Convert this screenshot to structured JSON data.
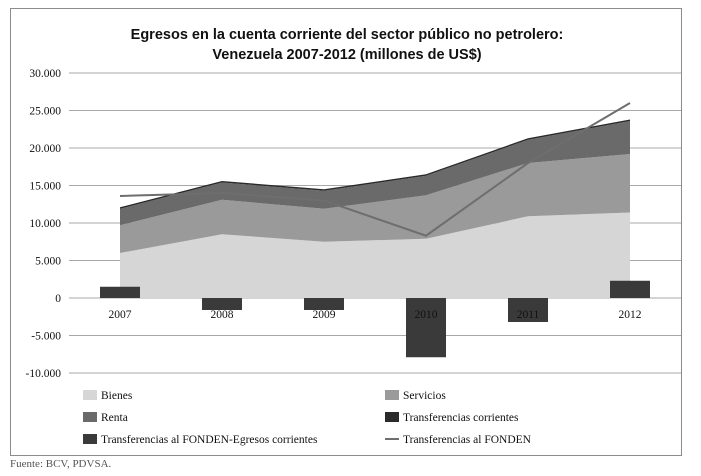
{
  "chart_data": {
    "type": "area",
    "title_line1": "Egresos en la cuenta corriente del sector público no petrolero:",
    "title_line2": "Venezuela 2007-2012 (millones de US$)",
    "categories": [
      "2007",
      "2008",
      "2009",
      "2010",
      "2011",
      "2012"
    ],
    "ylim": [
      -10000,
      30000
    ],
    "yticks": [
      {
        "value": 30000,
        "label": "30.000"
      },
      {
        "value": 25000,
        "label": "25.000"
      },
      {
        "value": 20000,
        "label": "20.000"
      },
      {
        "value": 15000,
        "label": "15.000"
      },
      {
        "value": 10000,
        "label": "10.000"
      },
      {
        "value": 5000,
        "label": "5.000"
      },
      {
        "value": 0,
        "label": "0"
      },
      {
        "value": -5000,
        "label": "-5.000"
      },
      {
        "value": -10000,
        "label": "-10.000"
      }
    ],
    "grid": true,
    "stacked_series": [
      {
        "name": "Bienes",
        "color": "#d6d6d6",
        "values": [
          6000,
          8500,
          7500,
          7900,
          10900,
          11400
        ]
      },
      {
        "name": "Servicios",
        "color": "#9a9a9a",
        "values": [
          3700,
          4600,
          4400,
          5800,
          7100,
          7800
        ]
      },
      {
        "name": "Renta",
        "color": "#6a6a6a",
        "values": [
          2200,
          2300,
          2400,
          2600,
          3100,
          4400
        ]
      },
      {
        "name": "Transferencias corrientes",
        "color": "#2a2a2a",
        "values": [
          200,
          200,
          200,
          200,
          200,
          200
        ]
      }
    ],
    "bar_series": {
      "name": "Transferencias al FONDEN-Egresos corrientes",
      "color": "#3a3a3a",
      "values": [
        1500,
        -1600,
        -1600,
        -7900,
        -3200,
        2300
      ]
    },
    "line_series": {
      "name": "Transferencias al FONDEN",
      "color": "#6e6e6e",
      "values": [
        13600,
        14000,
        13000,
        8300,
        18000,
        26000
      ]
    },
    "legend": [
      {
        "name": "Bienes",
        "color": "#d6d6d6",
        "kind": "box"
      },
      {
        "name": "Servicios",
        "color": "#9a9a9a",
        "kind": "box"
      },
      {
        "name": "Renta",
        "color": "#6a6a6a",
        "kind": "box"
      },
      {
        "name": "Transferencias corrientes",
        "color": "#2a2a2a",
        "kind": "box"
      },
      {
        "name": "Transferencias al FONDEN-Egresos corrientes",
        "color": "#3a3a3a",
        "kind": "box"
      },
      {
        "name": "Transferencias al FONDEN",
        "color": "#6e6e6e",
        "kind": "line"
      }
    ],
    "legend_position": "bottom"
  },
  "source_text": "Fuente: BCV, PDVSA."
}
